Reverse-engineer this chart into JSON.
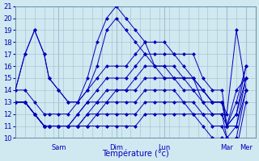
{
  "xlabel": "Température (°c)",
  "ylim": [
    10,
    21
  ],
  "yticks": [
    10,
    11,
    12,
    13,
    14,
    15,
    16,
    17,
    18,
    19,
    20,
    21
  ],
  "xlim": [
    0,
    100
  ],
  "bg_color": "#d0e8f0",
  "grid_color": "#a0bfcf",
  "line_color": "#0000bb",
  "vlines": [
    18,
    42,
    62,
    88,
    96
  ],
  "vline_labels": [
    "Sam",
    "Dim",
    "Lun",
    "Mar",
    "Mer"
  ],
  "fontsize_ticks": 6,
  "fontsize_xlabel": 7,
  "series": [
    {
      "x": [
        0,
        4,
        8,
        12,
        14,
        18,
        22,
        26,
        30,
        34,
        38,
        42,
        46,
        50,
        54,
        58,
        62,
        66,
        70,
        74,
        78,
        82,
        86,
        88,
        92,
        96
      ],
      "y": [
        13,
        13,
        12,
        11,
        11,
        11,
        11,
        11,
        11,
        11,
        11,
        11,
        11,
        11,
        12,
        12,
        12,
        12,
        12,
        12,
        11,
        10,
        10,
        9,
        9,
        13
      ]
    },
    {
      "x": [
        0,
        4,
        8,
        12,
        14,
        18,
        22,
        26,
        30,
        34,
        38,
        42,
        46,
        50,
        54,
        58,
        62,
        66,
        70,
        74,
        78,
        82,
        86,
        88,
        92,
        96
      ],
      "y": [
        13,
        13,
        12,
        11,
        11,
        11,
        11,
        11,
        11,
        12,
        12,
        12,
        12,
        12,
        13,
        13,
        13,
        13,
        13,
        12,
        12,
        11,
        11,
        10,
        10,
        14
      ]
    },
    {
      "x": [
        0,
        4,
        8,
        12,
        14,
        18,
        22,
        26,
        30,
        34,
        38,
        42,
        46,
        50,
        54,
        58,
        62,
        66,
        70,
        74,
        78,
        82,
        86,
        88,
        92,
        96
      ],
      "y": [
        13,
        13,
        12,
        11,
        11,
        11,
        11,
        11,
        12,
        12,
        13,
        13,
        13,
        13,
        14,
        14,
        14,
        14,
        13,
        13,
        12,
        12,
        12,
        10,
        11,
        14
      ]
    },
    {
      "x": [
        0,
        4,
        8,
        12,
        14,
        18,
        22,
        26,
        30,
        34,
        38,
        42,
        46,
        50,
        54,
        58,
        62,
        66,
        70,
        74,
        78,
        82,
        86,
        88,
        92,
        96
      ],
      "y": [
        13,
        13,
        12,
        11,
        11,
        11,
        11,
        11,
        12,
        13,
        13,
        14,
        14,
        14,
        15,
        15,
        15,
        15,
        14,
        14,
        13,
        12,
        12,
        11,
        11,
        15
      ]
    },
    {
      "x": [
        0,
        4,
        8,
        12,
        14,
        18,
        22,
        26,
        30,
        34,
        38,
        42,
        46,
        50,
        54,
        58,
        62,
        66,
        70,
        74,
        78,
        82,
        86,
        88,
        92,
        96
      ],
      "y": [
        13,
        13,
        12,
        11,
        11,
        11,
        11,
        12,
        13,
        13,
        14,
        14,
        14,
        15,
        16,
        16,
        16,
        16,
        15,
        15,
        13,
        13,
        13,
        11,
        12,
        15
      ]
    },
    {
      "x": [
        0,
        4,
        8,
        12,
        14,
        18,
        22,
        26,
        30,
        34,
        38,
        42,
        46,
        50,
        54,
        58,
        62,
        66,
        70,
        74,
        78,
        82,
        86,
        88,
        92,
        96
      ],
      "y": [
        13,
        13,
        12,
        11,
        11,
        11,
        11,
        12,
        13,
        14,
        15,
        15,
        15,
        16,
        17,
        17,
        17,
        17,
        16,
        15,
        14,
        13,
        13,
        11,
        12,
        16
      ]
    },
    {
      "x": [
        0,
        4,
        8,
        12,
        14,
        18,
        22,
        26,
        30,
        34,
        38,
        42,
        46,
        50,
        54,
        58,
        62,
        66,
        70,
        74,
        78,
        82,
        86,
        88,
        92,
        96
      ],
      "y": [
        14,
        14,
        13,
        12,
        12,
        12,
        12,
        13,
        14,
        15,
        16,
        16,
        16,
        17,
        18,
        18,
        18,
        17,
        17,
        17,
        15,
        14,
        14,
        11,
        13,
        16
      ]
    },
    {
      "x": [
        0,
        4,
        8,
        12,
        14,
        18,
        22,
        26,
        30,
        34,
        38,
        42,
        46,
        50,
        54,
        58,
        62,
        66,
        70,
        74,
        78,
        82,
        86,
        88,
        92,
        96
      ],
      "y": [
        14,
        17,
        19,
        17,
        15,
        14,
        13,
        13,
        14,
        16,
        19,
        20,
        19,
        18,
        17,
        16,
        15,
        15,
        15,
        15,
        14,
        13,
        13,
        11,
        14,
        15
      ]
    },
    {
      "x": [
        0,
        4,
        8,
        12,
        14,
        18,
        22,
        26,
        30,
        34,
        38,
        42,
        46,
        50,
        54,
        58,
        62,
        66,
        70,
        74,
        78,
        82,
        86,
        88,
        92,
        96
      ],
      "y": [
        14,
        17,
        19,
        17,
        15,
        14,
        13,
        13,
        15,
        18,
        20,
        21,
        20,
        19,
        18,
        16,
        16,
        15,
        15,
        14,
        14,
        13,
        13,
        12,
        19,
        14
      ]
    }
  ]
}
